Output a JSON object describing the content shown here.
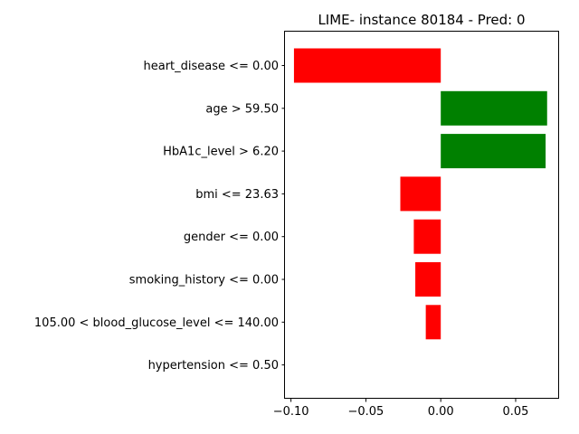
{
  "chart_data": {
    "type": "bar",
    "orientation": "horizontal",
    "title": "LIME- instance 80184 - Pred: 0",
    "xlabel": "",
    "ylabel": "",
    "xlim": [
      -0.104,
      0.079
    ],
    "xticks": [
      -0.1,
      -0.05,
      0.0,
      0.05
    ],
    "xtick_labels": [
      "−0.10",
      "−0.05",
      "0.00",
      "0.05"
    ],
    "grid": false,
    "legend": "none",
    "positive_color": "#008000",
    "negative_color": "#ff0000",
    "categories": [
      "heart_disease <= 0.00",
      "age > 59.50",
      "HbA1c_level > 6.20",
      "bmi <= 23.63",
      "gender <= 0.00",
      "smoking_history <= 0.00",
      "105.00 < blood_glucose_level <= 140.00",
      "hypertension <= 0.50"
    ],
    "values": [
      -0.098,
      0.071,
      0.07,
      -0.027,
      -0.018,
      -0.017,
      -0.01,
      0.0
    ]
  }
}
